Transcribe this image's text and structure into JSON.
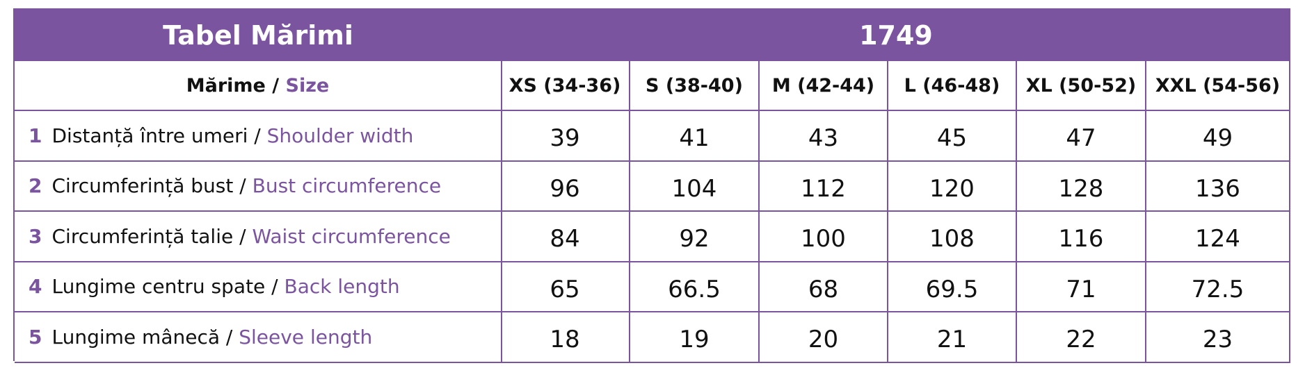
{
  "header": {
    "title": "Tabel Mărimi",
    "code": "1749"
  },
  "table": {
    "size_label": {
      "ro": "Mărime",
      "separator": " / ",
      "en": "Size"
    },
    "sizes": [
      "XS (34-36)",
      "S (38-40)",
      "M (42-44)",
      "L (46-48)",
      "XL (50-52)",
      "XXL (54-56)"
    ],
    "rows": [
      {
        "number": "1",
        "ro": "Distanță între umeri",
        "en": "Shoulder width",
        "values": [
          39,
          41,
          43,
          45,
          47,
          49
        ]
      },
      {
        "number": "2",
        "ro": "Circumferință bust",
        "en": "Bust circumference",
        "values": [
          96,
          104,
          112,
          120,
          128,
          136
        ]
      },
      {
        "number": "3",
        "ro": "Circumferință talie",
        "en": "Waist circumference",
        "values": [
          84,
          92,
          100,
          108,
          116,
          124
        ]
      },
      {
        "number": "4",
        "ro": "Lungime centru spate",
        "en": "Back length",
        "values": [
          65,
          66.5,
          68,
          69.5,
          71,
          72.5
        ]
      },
      {
        "number": "5",
        "ro": "Lungime mânecă",
        "en": "Sleeve length",
        "values": [
          18,
          19,
          20,
          21,
          22,
          23
        ]
      }
    ]
  }
}
